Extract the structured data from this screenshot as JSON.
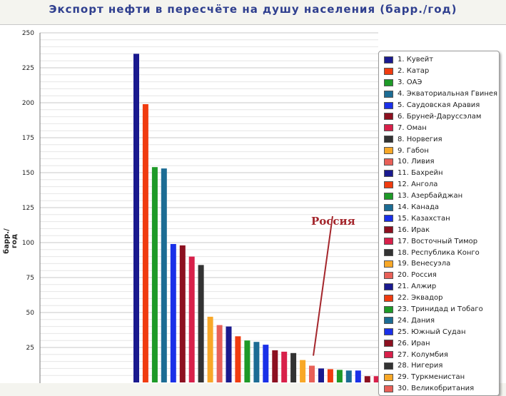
{
  "title": "Экспорт нефти в пересчёте на душу населения (барр./год)",
  "chart_data": {
    "type": "bar",
    "ylabel": "барр./год",
    "ylim": [
      0,
      250
    ],
    "yticks": [
      25,
      50,
      75,
      100,
      125,
      150,
      175,
      200,
      225,
      250
    ],
    "grid": true,
    "legend_position": "right",
    "categories": [
      "1. Кувейт",
      "2. Катар",
      "3. ОАЭ",
      "4. Экваториальная Гвинея",
      "5. Саудовская Аравия",
      "6. Бруней-Даруссэлам",
      "7. Оман",
      "8. Норвегия",
      "9. Габон",
      "10. Ливия",
      "11. Бахрейн",
      "12. Ангола",
      "13. Азербайджан",
      "14. Канада",
      "15. Казахстан",
      "16. Ирак",
      "17. Восточный Тимор",
      "18. Республика Конго",
      "19. Венесуэла",
      "20. Россия",
      "21. Алжир",
      "22. Эквадор",
      "23. Тринидад и Тобаго",
      "24. Дания",
      "25. Южный Судан",
      "26. Иран",
      "27. Колумбия",
      "28. Нигерия",
      "29. Туркменистан",
      "30. Великобритания"
    ],
    "values": [
      235,
      199,
      154,
      153,
      99,
      98,
      90,
      84,
      47,
      41,
      40,
      33,
      30,
      29,
      27,
      23,
      22,
      21,
      16,
      12,
      10,
      9.5,
      9,
      8.5,
      8.5,
      4.5,
      4.5,
      4,
      3.5,
      3
    ],
    "colors": [
      "#1a1a8f",
      "#f03c10",
      "#1e9a28",
      "#1c6c94",
      "#1a30e8",
      "#8c1020",
      "#d8204a",
      "#333333",
      "#f8a828",
      "#e86058",
      "#1a1a8f",
      "#f03c10",
      "#1e9a28",
      "#1c6c94",
      "#1a30e8",
      "#8c1020",
      "#d8204a",
      "#333333",
      "#f8a828",
      "#e86058",
      "#1a1a8f",
      "#f03c10",
      "#1e9a28",
      "#1c6c94",
      "#1a30e8",
      "#8c1020",
      "#d8204a",
      "#333333",
      "#f8a828",
      "#e86058"
    ],
    "annotation": {
      "text": "Россия",
      "target": "20. Россия",
      "color": "#a4262c"
    }
  }
}
